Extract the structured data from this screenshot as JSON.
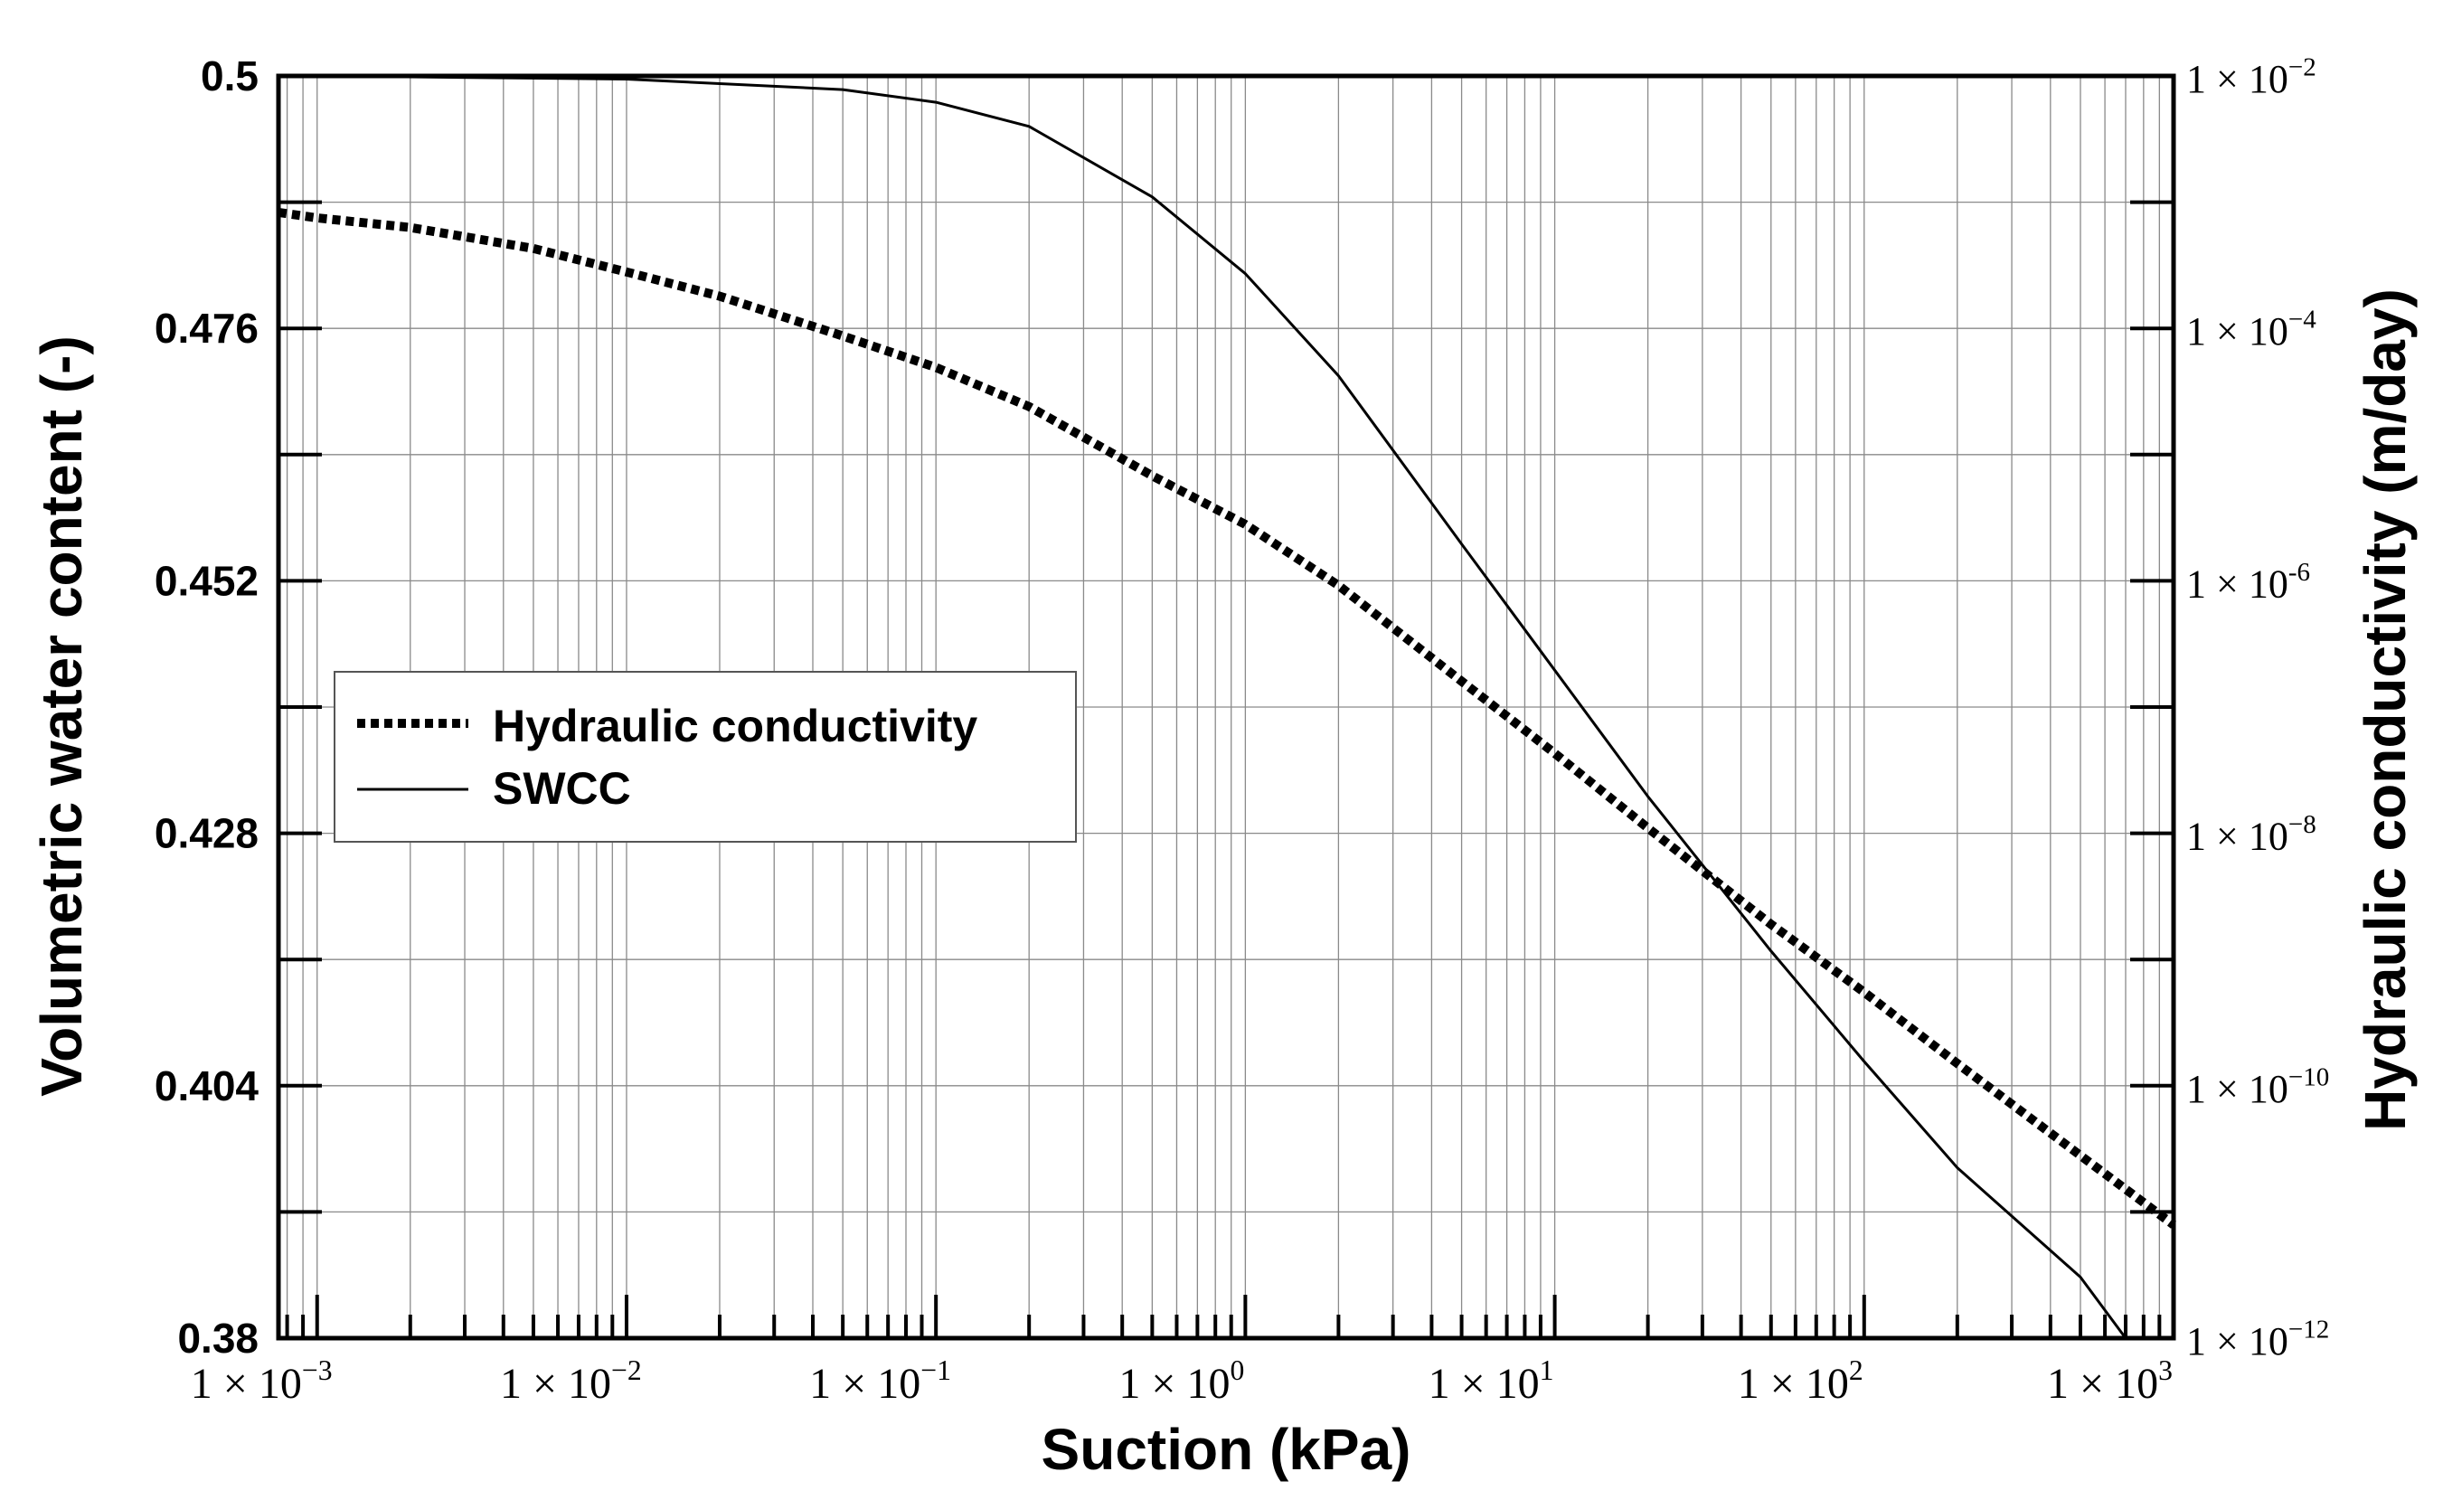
{
  "chart_data": {
    "type": "line",
    "title": "",
    "xlabel": "Suction (kPa)",
    "ylabel": "Volumetric water content (-)",
    "y2label": "Hydraulic conductivity (m/day)",
    "xscale": "log",
    "xlim": [
      0.00075,
      1000
    ],
    "ylim": [
      0.38,
      0.5
    ],
    "y2scale": "log",
    "y2lim": [
      1e-12,
      0.01
    ],
    "grid": true,
    "legend_position": "left-middle",
    "x_tick_labels": [
      {
        "value": 0.001,
        "base": "1 × 10",
        "exp": "−3"
      },
      {
        "value": 0.01,
        "base": "1 × 10",
        "exp": "−2"
      },
      {
        "value": 0.1,
        "base": "1 × 10",
        "exp": "−1"
      },
      {
        "value": 1,
        "base": "1 × 10",
        "exp": "0"
      },
      {
        "value": 10,
        "base": "1 × 10",
        "exp": "1"
      },
      {
        "value": 100,
        "base": "1 × 10",
        "exp": "2"
      },
      {
        "value": 1000,
        "base": "1 × 10",
        "exp": "3"
      }
    ],
    "y_tick_labels": [
      "0.38",
      "0.404",
      "0.428",
      "0.452",
      "0.476",
      "0.5"
    ],
    "y2_tick_labels": [
      {
        "value": 1e-12,
        "base": "1 × 10",
        "exp": "−12"
      },
      {
        "value": 1e-10,
        "base": "1 × 10",
        "exp": "−10"
      },
      {
        "value": 1e-08,
        "base": "1 × 10",
        "exp": "−8"
      },
      {
        "value": 1e-06,
        "base": "1 × 10",
        "exp": "-6"
      },
      {
        "value": 0.0001,
        "base": "1 × 10",
        "exp": "−4"
      },
      {
        "value": 0.01,
        "base": "1 × 10",
        "exp": "−2"
      }
    ],
    "series": [
      {
        "name": "Hydraulic conductivity",
        "axis": "right",
        "style": "dotted",
        "x": [
          0.00075,
          0.001,
          0.002,
          0.005,
          0.01,
          0.02,
          0.05,
          0.1,
          0.2,
          0.5,
          1,
          2,
          5,
          10,
          20,
          50,
          100,
          200,
          500,
          1000
        ],
        "y": [
          0.00083,
          0.00075,
          0.00063,
          0.00043,
          0.00028,
          0.00018,
          8.7e-05,
          4.9e-05,
          2.4e-05,
          6.8e-06,
          2.8e-06,
          9.2e-07,
          1.6e-07,
          4.3e-08,
          1.1e-08,
          1.9e-09,
          5.5e-10,
          1.5e-10,
          2.8e-11,
          7.9e-12
        ]
      },
      {
        "name": "SWCC",
        "axis": "left",
        "style": "solid",
        "x": [
          0.00075,
          0.001,
          0.01,
          0.05,
          0.1,
          0.2,
          0.5,
          1,
          2,
          5,
          10,
          20,
          50,
          100,
          200,
          500,
          700
        ],
        "y": [
          0.5,
          0.5,
          0.4997,
          0.4987,
          0.4975,
          0.4952,
          0.4885,
          0.4812,
          0.4715,
          0.4555,
          0.4435,
          0.4315,
          0.4168,
          0.4063,
          0.3962,
          0.3858,
          0.38
        ]
      }
    ]
  }
}
